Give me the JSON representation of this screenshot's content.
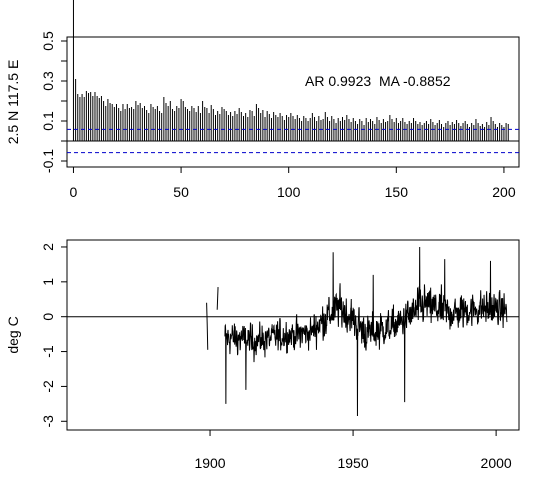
{
  "chart_data": [
    {
      "type": "bar",
      "subtype": "autocorrelation",
      "ylabel": "2.5 N 117.5 E",
      "annotation": "AR 0.9923  MA -0.8852",
      "xlim": [
        -3,
        207
      ],
      "ylim": [
        -0.13,
        0.52
      ],
      "x_ticks": [
        0,
        50,
        100,
        150,
        200
      ],
      "x_tick_labels": [
        "0",
        "50",
        "100",
        "150",
        "200"
      ],
      "y_ticks": [
        -0.1,
        0.1,
        0.3,
        0.5
      ],
      "y_tick_labels": [
        "-0.1",
        "0.1",
        "0.3",
        "0.5"
      ],
      "y_minor_ticks": [
        -0.1,
        0.0,
        0.1,
        0.2,
        0.3,
        0.4,
        0.5
      ],
      "zero_line": 0,
      "confidence_bounds": [
        0.058,
        -0.058
      ],
      "confidence_color": "#0000cc",
      "lag_values": [
        1.0,
        0.31,
        0.235,
        0.22,
        0.235,
        0.22,
        0.25,
        0.24,
        0.245,
        0.225,
        0.245,
        0.225,
        0.215,
        0.225,
        0.2,
        0.175,
        0.21,
        0.19,
        0.185,
        0.17,
        0.185,
        0.165,
        0.15,
        0.185,
        0.16,
        0.185,
        0.165,
        0.17,
        0.16,
        0.2,
        0.18,
        0.19,
        0.165,
        0.175,
        0.155,
        0.14,
        0.185,
        0.17,
        0.16,
        0.175,
        0.15,
        0.14,
        0.22,
        0.19,
        0.175,
        0.2,
        0.16,
        0.15,
        0.175,
        0.165,
        0.21,
        0.2,
        0.17,
        0.16,
        0.15,
        0.175,
        0.165,
        0.145,
        0.175,
        0.14,
        0.2,
        0.17,
        0.165,
        0.14,
        0.18,
        0.16,
        0.13,
        0.15,
        0.135,
        0.17,
        0.16,
        0.15,
        0.13,
        0.145,
        0.125,
        0.15,
        0.135,
        0.165,
        0.145,
        0.125,
        0.14,
        0.12,
        0.155,
        0.15,
        0.125,
        0.185,
        0.165,
        0.14,
        0.155,
        0.12,
        0.15,
        0.135,
        0.115,
        0.145,
        0.13,
        0.12,
        0.14,
        0.125,
        0.105,
        0.13,
        0.12,
        0.14,
        0.125,
        0.11,
        0.13,
        0.115,
        0.1,
        0.125,
        0.115,
        0.1,
        0.115,
        0.14,
        0.12,
        0.1,
        0.125,
        0.105,
        0.11,
        0.145,
        0.12,
        0.1,
        0.125,
        0.11,
        0.09,
        0.115,
        0.1,
        0.12,
        0.105,
        0.13,
        0.11,
        0.095,
        0.115,
        0.1,
        0.085,
        0.11,
        0.1,
        0.08,
        0.115,
        0.095,
        0.11,
        0.1,
        0.085,
        0.12,
        0.105,
        0.09,
        0.11,
        0.095,
        0.1,
        0.13,
        0.11,
        0.095,
        0.115,
        0.09,
        0.1,
        0.115,
        0.095,
        0.085,
        0.1,
        0.09,
        0.115,
        0.1,
        0.085,
        0.095,
        0.08,
        0.09,
        0.1,
        0.085,
        0.11,
        0.095,
        0.08,
        0.09,
        0.105,
        0.085,
        0.07,
        0.09,
        0.1,
        0.08,
        0.095,
        0.085,
        0.105,
        0.09,
        0.075,
        0.09,
        0.1,
        0.085,
        0.07,
        0.09,
        0.08,
        0.11,
        0.09,
        0.075,
        0.085,
        0.07,
        0.095,
        0.08,
        0.12,
        0.1,
        0.085,
        0.07,
        0.09,
        0.08,
        0.07,
        0.09,
        0.085
      ]
    },
    {
      "type": "line",
      "ylabel": "deg C",
      "xlim": [
        1850,
        2008
      ],
      "ylim": [
        -3.25,
        2.2
      ],
      "x_ticks": [
        1900,
        1950,
        2000
      ],
      "x_tick_labels": [
        "1900",
        "1950",
        "2000"
      ],
      "y_ticks": [
        -3,
        -2,
        -1,
        0,
        1,
        2
      ],
      "y_tick_labels": [
        "-3",
        "-2",
        "-1",
        "0",
        "1",
        "2"
      ],
      "zero_line": 0,
      "x_start": 1898.8,
      "x_step": 0.0833333,
      "generator_note": "",
      "series": [
        {
          "name": "",
          "x_range": [
            1898.8,
            2003.8
          ],
          "segments": [
            {
              "x": [
                1898.8,
                1899.0,
                1899.2
              ],
              "y": [
                0.4,
                -0.2,
                -0.95
              ]
            },
            {
              "x": [
                1902.5,
                1902.8
              ],
              "y": [
                0.2,
                0.85
              ]
            }
          ],
          "envelope": {
            "decade_centers": [
              1907,
              1915,
              1925,
              1935,
              1941,
              1945,
              1955,
              1965,
              1975,
              1985,
              1995,
              2002
            ],
            "mean": [
              -0.6,
              -0.7,
              -0.55,
              -0.45,
              0.0,
              0.3,
              -0.5,
              -0.25,
              0.35,
              0.1,
              0.25,
              0.2
            ],
            "amplitude": [
              1.0,
              0.9,
              0.9,
              0.85,
              1.1,
              1.1,
              1.1,
              1.0,
              1.15,
              1.0,
              1.0,
              0.9
            ]
          },
          "notable_points": [
            {
              "x": 1905.5,
              "y": -2.5
            },
            {
              "x": 1912.5,
              "y": -2.1
            },
            {
              "x": 1943.0,
              "y": 1.85
            },
            {
              "x": 1951.5,
              "y": -2.85
            },
            {
              "x": 1957.0,
              "y": 1.2
            },
            {
              "x": 1968.0,
              "y": -2.45
            },
            {
              "x": 1973.3,
              "y": 2.0
            },
            {
              "x": 1982.0,
              "y": 1.65
            },
            {
              "x": 1998.0,
              "y": 1.6
            }
          ]
        }
      ]
    }
  ]
}
